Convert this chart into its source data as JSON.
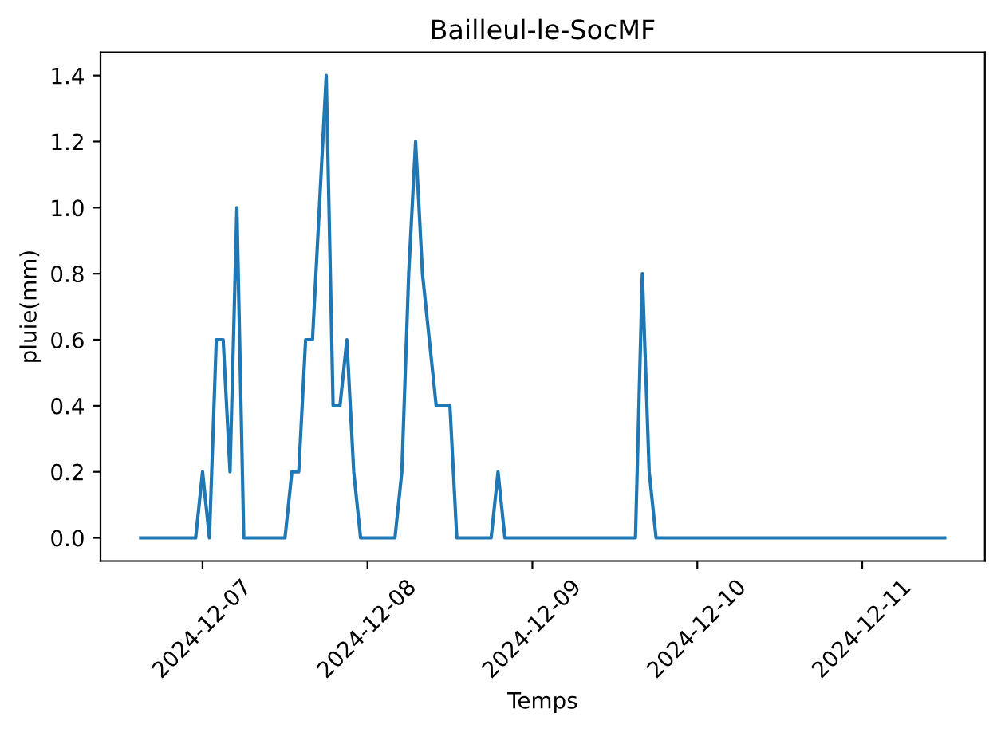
{
  "chart_data": {
    "type": "line",
    "title": "Bailleul-le-SocMF",
    "xlabel": "Temps",
    "ylabel": "pluie(mm)",
    "x": [
      "2024-12-06T15:00",
      "2024-12-06T16:00",
      "2024-12-06T17:00",
      "2024-12-06T18:00",
      "2024-12-06T19:00",
      "2024-12-06T20:00",
      "2024-12-06T21:00",
      "2024-12-06T22:00",
      "2024-12-06T23:00",
      "2024-12-07T00:00",
      "2024-12-07T01:00",
      "2024-12-07T02:00",
      "2024-12-07T03:00",
      "2024-12-07T04:00",
      "2024-12-07T05:00",
      "2024-12-07T06:00",
      "2024-12-07T07:00",
      "2024-12-07T08:00",
      "2024-12-07T09:00",
      "2024-12-07T10:00",
      "2024-12-07T11:00",
      "2024-12-07T12:00",
      "2024-12-07T13:00",
      "2024-12-07T14:00",
      "2024-12-07T15:00",
      "2024-12-07T16:00",
      "2024-12-07T17:00",
      "2024-12-07T18:00",
      "2024-12-07T19:00",
      "2024-12-07T20:00",
      "2024-12-07T21:00",
      "2024-12-07T22:00",
      "2024-12-07T23:00",
      "2024-12-08T00:00",
      "2024-12-08T01:00",
      "2024-12-08T02:00",
      "2024-12-08T03:00",
      "2024-12-08T04:00",
      "2024-12-08T05:00",
      "2024-12-08T06:00",
      "2024-12-08T07:00",
      "2024-12-08T08:00",
      "2024-12-08T09:00",
      "2024-12-08T10:00",
      "2024-12-08T11:00",
      "2024-12-08T12:00",
      "2024-12-08T13:00",
      "2024-12-08T14:00",
      "2024-12-08T15:00",
      "2024-12-08T16:00",
      "2024-12-08T17:00",
      "2024-12-08T18:00",
      "2024-12-08T19:00",
      "2024-12-08T20:00",
      "2024-12-08T21:00",
      "2024-12-08T22:00",
      "2024-12-08T23:00",
      "2024-12-09T00:00",
      "2024-12-09T01:00",
      "2024-12-09T02:00",
      "2024-12-09T03:00",
      "2024-12-09T04:00",
      "2024-12-09T05:00",
      "2024-12-09T06:00",
      "2024-12-09T07:00",
      "2024-12-09T08:00",
      "2024-12-09T09:00",
      "2024-12-09T10:00",
      "2024-12-09T11:00",
      "2024-12-09T12:00",
      "2024-12-09T13:00",
      "2024-12-09T14:00",
      "2024-12-09T15:00",
      "2024-12-09T16:00",
      "2024-12-09T17:00",
      "2024-12-09T18:00",
      "2024-12-09T19:00",
      "2024-12-09T20:00",
      "2024-12-09T21:00",
      "2024-12-09T22:00",
      "2024-12-09T23:00",
      "2024-12-10T00:00",
      "2024-12-10T01:00",
      "2024-12-10T02:00",
      "2024-12-10T03:00",
      "2024-12-10T04:00",
      "2024-12-10T05:00",
      "2024-12-10T06:00",
      "2024-12-10T07:00",
      "2024-12-10T08:00",
      "2024-12-10T09:00",
      "2024-12-10T10:00",
      "2024-12-10T11:00",
      "2024-12-10T12:00",
      "2024-12-10T13:00",
      "2024-12-10T14:00",
      "2024-12-10T15:00",
      "2024-12-10T16:00",
      "2024-12-10T17:00",
      "2024-12-10T18:00",
      "2024-12-10T19:00",
      "2024-12-10T20:00",
      "2024-12-10T21:00",
      "2024-12-10T22:00",
      "2024-12-10T23:00",
      "2024-12-11T00:00",
      "2024-12-11T01:00",
      "2024-12-11T02:00",
      "2024-12-11T03:00",
      "2024-12-11T04:00",
      "2024-12-11T05:00",
      "2024-12-11T06:00",
      "2024-12-11T07:00",
      "2024-12-11T08:00",
      "2024-12-11T09:00",
      "2024-12-11T10:00",
      "2024-12-11T11:00",
      "2024-12-11T12:00"
    ],
    "series": [
      {
        "color": "#1f77b4",
        "values": [
          0,
          0,
          0,
          0,
          0,
          0,
          0,
          0,
          0,
          0.2,
          0,
          0.6,
          0.6,
          0.2,
          1.0,
          0,
          0,
          0,
          0,
          0,
          0,
          0,
          0.2,
          0.2,
          0.6,
          0.6,
          1.0,
          1.4,
          0.4,
          0.4,
          0.6,
          0.2,
          0,
          0,
          0,
          0,
          0,
          0,
          0.2,
          0.8,
          1.2,
          0.8,
          0.6,
          0.4,
          0.4,
          0.4,
          0,
          0,
          0,
          0,
          0,
          0,
          0.2,
          0,
          0,
          0,
          0,
          0,
          0,
          0,
          0,
          0,
          0,
          0,
          0,
          0,
          0,
          0,
          0,
          0,
          0,
          0,
          0,
          0.8,
          0.2,
          0,
          0,
          0,
          0,
          0,
          0,
          0,
          0,
          0,
          0,
          0,
          0,
          0,
          0,
          0,
          0,
          0,
          0,
          0,
          0,
          0,
          0,
          0,
          0,
          0,
          0,
          0,
          0,
          0,
          0,
          0,
          0,
          0,
          0,
          0,
          0,
          0,
          0,
          0,
          0,
          0,
          0,
          0
        ]
      }
    ],
    "xlim": [
      "2024-12-06T09:09",
      "2024-12-11T17:51"
    ],
    "xticks": [
      "2024-12-07",
      "2024-12-08",
      "2024-12-09",
      "2024-12-10",
      "2024-12-11"
    ],
    "ylim": [
      -0.07,
      1.47
    ],
    "yticks": [
      {
        "value": 0,
        "label": "0.0"
      },
      {
        "value": 0.2,
        "label": "0.2"
      },
      {
        "value": 0.4,
        "label": "0.4"
      },
      {
        "value": 0.6,
        "label": "0.6"
      },
      {
        "value": 0.8,
        "label": "0.8"
      },
      {
        "value": 1.0,
        "label": "1.0"
      },
      {
        "value": 1.2,
        "label": "1.2"
      },
      {
        "value": 1.4,
        "label": "1.4"
      }
    ],
    "grid": false
  }
}
